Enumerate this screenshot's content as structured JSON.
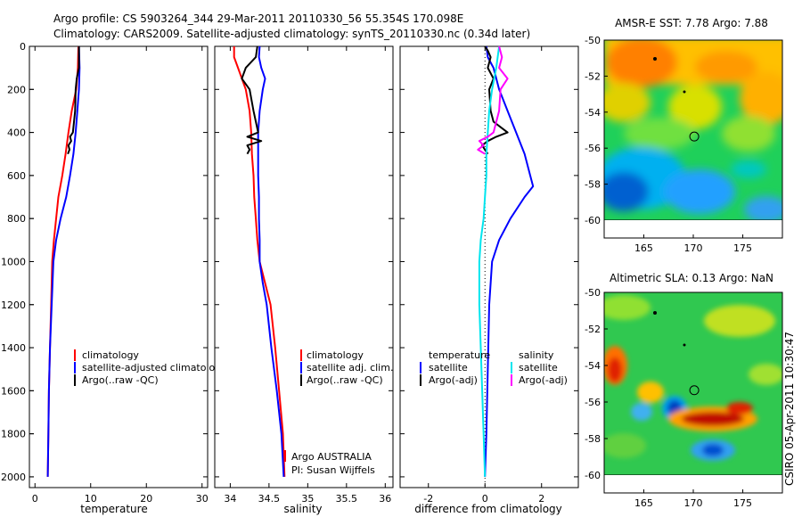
{
  "header": {
    "line1": "Argo profile: CS 5903264_344 29-Mar-2011 20110330_56 55.354S 170.098E",
    "line2": "Climatology: CARS2009. Satellite-adjusted climatology: synTS_20110330.nc (0.34d later)"
  },
  "side_text": "CSIRO 05-Apr-2011 10:30:47",
  "colors": {
    "climatology": "#ff0000",
    "satellite": "#0000ff",
    "argo": "#000000",
    "cyan": "#00e5ee",
    "magenta": "#ff00ff"
  },
  "chart_data": [
    {
      "id": "temperature",
      "type": "line",
      "xlabel": "temperature",
      "ylabel": "",
      "xlim": [
        -1,
        31
      ],
      "ylim": [
        2050,
        0
      ],
      "xticks": [
        "0",
        "10",
        "20",
        "30"
      ],
      "xtick_values": [
        0,
        10,
        20,
        30
      ],
      "yticks": [
        "0",
        "200",
        "400",
        "600",
        "800",
        "1000",
        "1200",
        "1400",
        "1600",
        "1800",
        "2000"
      ],
      "ytick_values": [
        0,
        200,
        400,
        600,
        800,
        1000,
        1200,
        1400,
        1600,
        1800,
        2000
      ],
      "legend": [
        "climatology",
        "satellite-adjusted climatology",
        "Argo(..raw -QC)"
      ],
      "series": [
        {
          "name": "climatology",
          "color_key": "climatology",
          "points": [
            [
              7.8,
              0
            ],
            [
              7.7,
              100
            ],
            [
              7.4,
              200
            ],
            [
              6.6,
              300
            ],
            [
              6.0,
              400
            ],
            [
              5.5,
              500
            ],
            [
              4.9,
              600
            ],
            [
              4.2,
              700
            ],
            [
              3.8,
              800
            ],
            [
              3.4,
              900
            ],
            [
              3.1,
              1000
            ],
            [
              2.9,
              1200
            ],
            [
              2.7,
              1400
            ],
            [
              2.5,
              1600
            ],
            [
              2.4,
              1800
            ],
            [
              2.3,
              2000
            ]
          ]
        },
        {
          "name": "satellite-adjusted climatology",
          "color_key": "satellite",
          "points": [
            [
              7.9,
              0
            ],
            [
              8.0,
              100
            ],
            [
              7.9,
              200
            ],
            [
              7.6,
              300
            ],
            [
              7.3,
              400
            ],
            [
              6.9,
              500
            ],
            [
              6.3,
              600
            ],
            [
              5.6,
              700
            ],
            [
              4.6,
              800
            ],
            [
              3.8,
              900
            ],
            [
              3.3,
              1000
            ],
            [
              3.0,
              1200
            ],
            [
              2.7,
              1400
            ],
            [
              2.5,
              1600
            ],
            [
              2.4,
              1800
            ],
            [
              2.3,
              2000
            ]
          ]
        },
        {
          "name": "Argo(..raw -QC)",
          "color_key": "argo",
          "points": [
            [
              7.9,
              0
            ],
            [
              7.9,
              100
            ],
            [
              7.5,
              150
            ],
            [
              7.3,
              200
            ],
            [
              7.2,
              300
            ],
            [
              6.8,
              400
            ],
            [
              6.3,
              420
            ],
            [
              6.5,
              440
            ],
            [
              6.0,
              460
            ],
            [
              6.2,
              480
            ],
            [
              5.9,
              500
            ]
          ]
        }
      ]
    },
    {
      "id": "salinity",
      "type": "line",
      "xlabel": "salinity",
      "ylabel": "",
      "xlim": [
        33.8,
        36.1
      ],
      "ylim": [
        2050,
        0
      ],
      "xticks": [
        "34",
        "34.5",
        "35",
        "35.5",
        "36"
      ],
      "xtick_values": [
        34,
        34.5,
        35,
        35.5,
        36
      ],
      "legend": [
        "climatology",
        "satellite adj. clim.",
        "Argo(..raw -QC)"
      ],
      "annotation": [
        "Argo AUSTRALIA",
        "PI: Susan Wijffels"
      ],
      "series": [
        {
          "name": "climatology",
          "color_key": "climatology",
          "points": [
            [
              34.05,
              0
            ],
            [
              34.05,
              50
            ],
            [
              34.1,
              100
            ],
            [
              34.2,
              200
            ],
            [
              34.25,
              300
            ],
            [
              34.27,
              400
            ],
            [
              34.28,
              500
            ],
            [
              34.3,
              600
            ],
            [
              34.31,
              700
            ],
            [
              34.33,
              800
            ],
            [
              34.35,
              900
            ],
            [
              34.38,
              1000
            ],
            [
              34.45,
              1100
            ],
            [
              34.52,
              1200
            ],
            [
              34.58,
              1400
            ],
            [
              34.63,
              1600
            ],
            [
              34.68,
              1800
            ],
            [
              34.7,
              2000
            ]
          ]
        },
        {
          "name": "satellite adj. clim.",
          "color_key": "satellite",
          "points": [
            [
              34.38,
              0
            ],
            [
              34.37,
              50
            ],
            [
              34.4,
              100
            ],
            [
              34.45,
              150
            ],
            [
              34.42,
              200
            ],
            [
              34.38,
              300
            ],
            [
              34.36,
              400
            ],
            [
              34.36,
              500
            ],
            [
              34.36,
              600
            ],
            [
              34.37,
              700
            ],
            [
              34.37,
              800
            ],
            [
              34.38,
              900
            ],
            [
              34.38,
              1000
            ],
            [
              34.42,
              1100
            ],
            [
              34.47,
              1200
            ],
            [
              34.53,
              1400
            ],
            [
              34.6,
              1600
            ],
            [
              34.66,
              1800
            ],
            [
              34.69,
              2000
            ]
          ]
        },
        {
          "name": "Argo(..raw -QC)",
          "color_key": "argo",
          "points": [
            [
              34.35,
              0
            ],
            [
              34.33,
              50
            ],
            [
              34.2,
              100
            ],
            [
              34.15,
              150
            ],
            [
              34.25,
              200
            ],
            [
              34.3,
              300
            ],
            [
              34.33,
              350
            ],
            [
              34.36,
              400
            ],
            [
              34.22,
              420
            ],
            [
              34.4,
              440
            ],
            [
              34.22,
              460
            ],
            [
              34.25,
              480
            ],
            [
              34.22,
              500
            ]
          ]
        }
      ]
    },
    {
      "id": "difference",
      "type": "line",
      "xlabel": "difference from climatology",
      "ylabel": "",
      "xlim": [
        -3,
        3.3
      ],
      "ylim": [
        2050,
        0
      ],
      "xticks": [
        "-2",
        "0",
        "2"
      ],
      "xtick_values": [
        -2,
        0,
        2
      ],
      "legend_left_title": "temperature",
      "legend_right_title": "salinity",
      "legend_left": [
        "satellite",
        "Argo(-adj)"
      ],
      "legend_right": [
        "satellite",
        "Argo(-adj)"
      ],
      "series": [
        {
          "name": "temperature satellite",
          "color_key": "satellite",
          "points": [
            [
              0.05,
              0
            ],
            [
              0.1,
              50
            ],
            [
              0.3,
              100
            ],
            [
              0.5,
              200
            ],
            [
              0.8,
              300
            ],
            [
              1.1,
              400
            ],
            [
              1.4,
              500
            ],
            [
              1.6,
              600
            ],
            [
              1.7,
              650
            ],
            [
              1.4,
              700
            ],
            [
              0.9,
              800
            ],
            [
              0.5,
              900
            ],
            [
              0.25,
              1000
            ],
            [
              0.15,
              1200
            ],
            [
              0.1,
              1500
            ],
            [
              0.05,
              1800
            ],
            [
              0.0,
              2000
            ]
          ]
        },
        {
          "name": "temperature Argo(-adj)",
          "color_key": "argo",
          "points": [
            [
              0.0,
              0
            ],
            [
              0.1,
              20
            ],
            [
              0.2,
              50
            ],
            [
              0.1,
              100
            ],
            [
              0.3,
              150
            ],
            [
              0.15,
              200
            ],
            [
              0.2,
              300
            ],
            [
              0.3,
              350
            ],
            [
              0.6,
              380
            ],
            [
              0.8,
              400
            ],
            [
              0.4,
              420
            ],
            [
              0.1,
              440
            ],
            [
              -0.1,
              460
            ],
            [
              0.0,
              480
            ],
            [
              0.1,
              500
            ]
          ]
        },
        {
          "name": "salinity satellite",
          "color_key": "cyan",
          "points": [
            [
              0.5,
              0
            ],
            [
              0.4,
              100
            ],
            [
              0.25,
              200
            ],
            [
              0.15,
              300
            ],
            [
              0.1,
              400
            ],
            [
              0.05,
              500
            ],
            [
              0.05,
              600
            ],
            [
              0.0,
              700
            ],
            [
              -0.05,
              800
            ],
            [
              -0.15,
              900
            ],
            [
              -0.2,
              1000
            ],
            [
              -0.2,
              1200
            ],
            [
              -0.15,
              1400
            ],
            [
              -0.1,
              1600
            ],
            [
              -0.05,
              1800
            ],
            [
              0.0,
              2000
            ]
          ]
        },
        {
          "name": "salinity Argo(-adj)",
          "color_key": "magenta",
          "points": [
            [
              0.5,
              0
            ],
            [
              0.6,
              50
            ],
            [
              0.5,
              100
            ],
            [
              0.8,
              150
            ],
            [
              0.55,
              200
            ],
            [
              0.5,
              300
            ],
            [
              0.3,
              400
            ],
            [
              0.1,
              420
            ],
            [
              -0.2,
              440
            ],
            [
              -0.05,
              460
            ],
            [
              -0.25,
              480
            ],
            [
              0.0,
              500
            ]
          ]
        }
      ]
    },
    {
      "id": "sst_map",
      "type": "heatmap",
      "title": "AMSR-E SST: 7.78  Argo: 7.88",
      "xlim": [
        161,
        179
      ],
      "ylim": [
        -60,
        -50
      ],
      "xticks": [
        "165",
        "170",
        "175"
      ],
      "xtick_values": [
        165,
        170,
        175
      ],
      "yticks": [
        "-50",
        "-52",
        "-54",
        "-56",
        "-58",
        "-60"
      ],
      "ytick_values": [
        -50,
        -52,
        -54,
        -56,
        -58,
        -60
      ],
      "marker": {
        "lon": 170.098,
        "lat": -55.354
      }
    },
    {
      "id": "sla_map",
      "type": "heatmap",
      "title": "Altimetric SLA: 0.13  Argo: NaN",
      "xlim": [
        161,
        179
      ],
      "ylim": [
        -60,
        -50
      ],
      "xticks": [
        "165",
        "170",
        "175"
      ],
      "xtick_values": [
        165,
        170,
        175
      ],
      "yticks": [
        "-50",
        "-52",
        "-54",
        "-56",
        "-58",
        "-60"
      ],
      "ytick_values": [
        -50,
        -52,
        -54,
        -56,
        -58,
        -60
      ],
      "marker": {
        "lon": 170.098,
        "lat": -55.354
      }
    }
  ]
}
